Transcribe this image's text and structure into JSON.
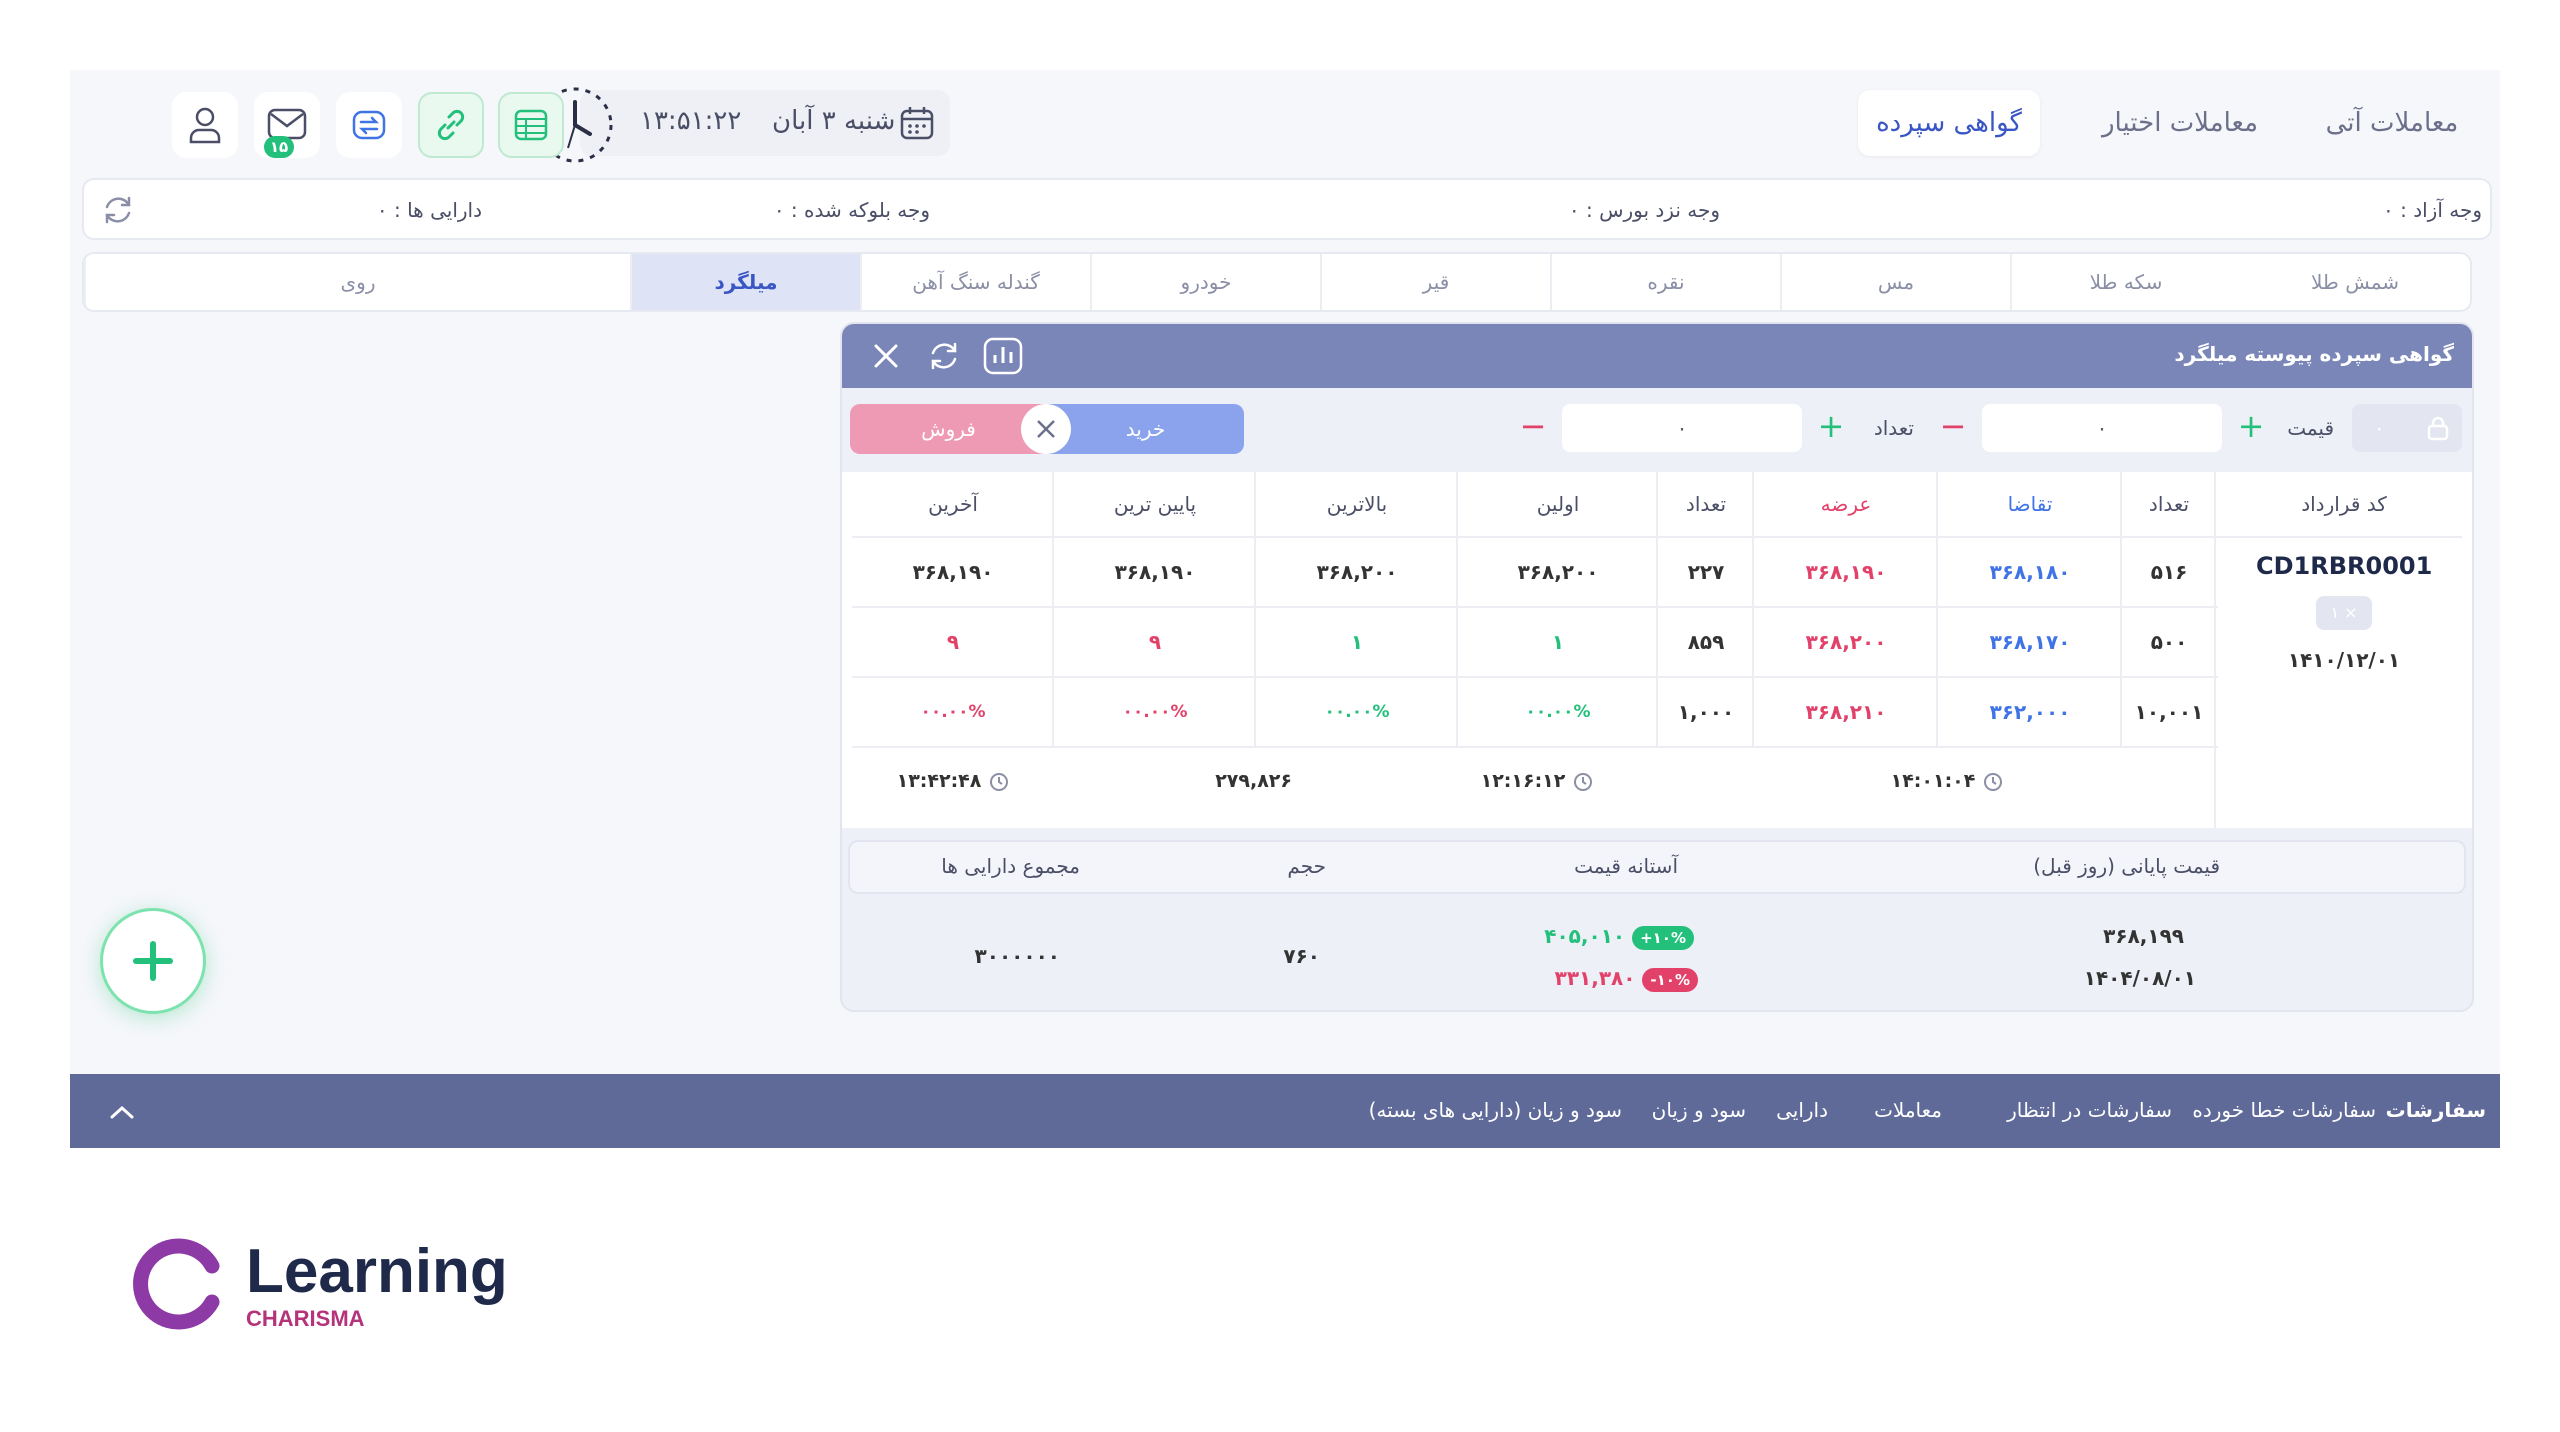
{
  "top_tabs": [
    "معاملات آتی",
    "معاملات اختیار",
    "گواهی سپرده"
  ],
  "clock": {
    "time": "۱۳:۵۱:۲۲",
    "date": "شنبه ۳ آبان"
  },
  "mail_badge": "۱۵",
  "balance": {
    "free": "وجه آزاد : ۰",
    "broker": "وجه نزد بورس : ۰",
    "blocked": "وجه بلوکه شده : ۰",
    "assets": "دارایی ها : ۰"
  },
  "asset_tabs": [
    "شمش طلا",
    "سکه طلا",
    "مس",
    "نقره",
    "قیر",
    "خودرو",
    "گندله سنگ آهن",
    "میلگرد",
    "روی"
  ],
  "panel": {
    "title": "گواهی سپرده پیوسته میلگرد",
    "price_label": "قیمت",
    "price_value": "۰",
    "qty_label": "تعداد",
    "qty_value": "۰",
    "buy": "خرید",
    "sell": "فروش",
    "lock_value": "۰"
  },
  "table": {
    "headers": [
      "کد قرارداد",
      "تعداد",
      "تقاضا",
      "عرضه",
      "تعداد",
      "اولین",
      "بالاترین",
      "پایین ترین",
      "آخرین"
    ],
    "contract_code": "CD1RBR0001",
    "contract_multiplier": "۱ ×",
    "contract_date": "۱۴۱۰/۱۲/۰۱",
    "rows": [
      [
        "۵۱۶",
        "۳۶۸,۱۸۰",
        "۳۶۸,۱۹۰",
        "۲۲۷",
        "۳۶۸,۲۰۰",
        "۳۶۸,۲۰۰",
        "۳۶۸,۱۹۰",
        "۳۶۸,۱۹۰"
      ],
      [
        "۵۰۰",
        "۳۶۸,۱۷۰",
        "۳۶۸,۲۰۰",
        "۸۵۹",
        "۱",
        "۱",
        "۹",
        "۹"
      ],
      [
        "۱۰,۰۰۱",
        "۳۶۲,۰۰۰",
        "۳۶۸,۲۱۰",
        "۱,۰۰۰",
        "۰۰.۰۰%",
        "۰۰.۰۰%",
        "۰۰.۰۰%",
        "۰۰.۰۰%"
      ]
    ],
    "times": [
      "۱۴:۰۱:۰۴",
      "۱۲:۱۶:۱۲",
      "۲۷۹,۸۲۶",
      "۱۳:۴۲:۴۸"
    ]
  },
  "summary": {
    "headers": [
      "قیمت پایانی (روز قبل)",
      "آستانه قیمت",
      "حجم",
      "مجموع دارایی ها"
    ],
    "close_price": "۳۶۸,۱۹۹",
    "close_date": "۱۴۰۴/۰۸/۰۱",
    "upper": "۴۰۵,۰۱۰",
    "upper_badge": "+۱۰%",
    "lower": "۳۳۱,۳۸۰",
    "lower_badge": "-۱۰%",
    "volume": "۷۶۰",
    "total": "۳۰۰۰۰۰۰"
  },
  "bottom_tabs": [
    "سفارشات",
    "سفارشات خطا خورده",
    "سفارشات در انتظار",
    "معاملات",
    "دارایی",
    "سود و زیان",
    "سود و زیان (دارایی های بسته)"
  ],
  "logo": {
    "name": "Learning",
    "sub": "CHARISMA"
  },
  "colors": {
    "accent": "#3a56c5",
    "header": "#7b86b8",
    "bottom": "#5f6a98",
    "green": "#22c07a",
    "red": "#e2426a",
    "buy": "#8aa3ec",
    "sell": "#ef9ab5"
  }
}
